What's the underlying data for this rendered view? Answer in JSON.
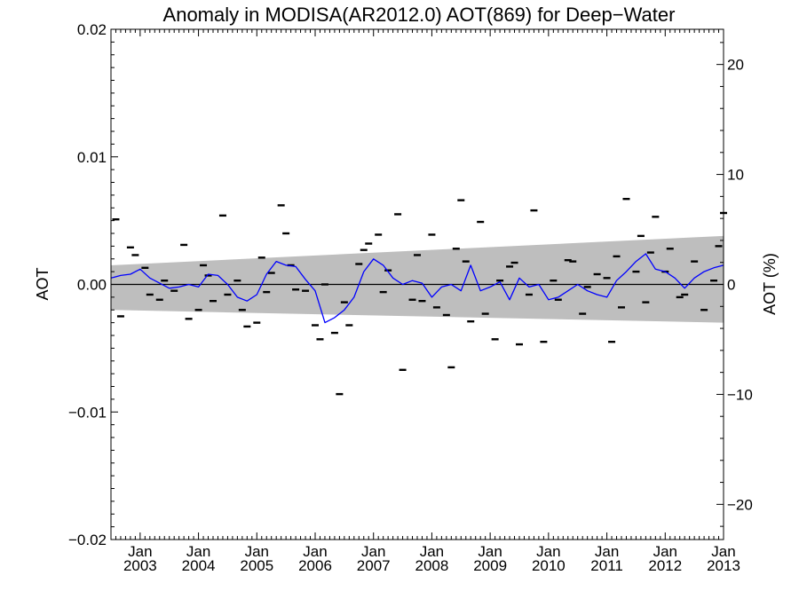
{
  "chart_data": {
    "type": "line",
    "title": "Anomaly in MODISA(AR2012.0) AOT(869) for Deep−Water",
    "ylabel": "AOT",
    "y2label": "AOT (%)",
    "ylim": [
      -0.02,
      0.02
    ],
    "y2lim": [
      -23.2,
      23.2
    ],
    "xlim": [
      "2002-07",
      "2013-01"
    ],
    "yticks": [
      {
        "value": 0.02,
        "label": "0.02"
      },
      {
        "value": 0.01,
        "label": "0.01"
      },
      {
        "value": 0.0,
        "label": "0.00"
      },
      {
        "value": -0.01,
        "label": "−0.01"
      },
      {
        "value": -0.02,
        "label": "−0.02"
      }
    ],
    "y2ticks": [
      {
        "value": 20,
        "label": "20"
      },
      {
        "value": 10,
        "label": "10"
      },
      {
        "value": 0,
        "label": "0"
      },
      {
        "value": -10,
        "label": "−10"
      },
      {
        "value": -20,
        "label": "−20"
      }
    ],
    "xticks": [
      {
        "date": "2003-01",
        "month": "Jan",
        "year": "2003"
      },
      {
        "date": "2004-01",
        "month": "Jan",
        "year": "2004"
      },
      {
        "date": "2005-01",
        "month": "Jan",
        "year": "2005"
      },
      {
        "date": "2006-01",
        "month": "Jan",
        "year": "2006"
      },
      {
        "date": "2007-01",
        "month": "Jan",
        "year": "2007"
      },
      {
        "date": "2008-01",
        "month": "Jan",
        "year": "2008"
      },
      {
        "date": "2009-01",
        "month": "Jan",
        "year": "2009"
      },
      {
        "date": "2010-01",
        "month": "Jan",
        "year": "2010"
      },
      {
        "date": "2011-01",
        "month": "Jan",
        "year": "2011"
      },
      {
        "date": "2012-01",
        "month": "Jan",
        "year": "2012"
      },
      {
        "date": "2013-01",
        "month": "Jan",
        "year": "2013"
      }
    ],
    "band": {
      "start": {
        "date": "2002-07",
        "upper": 0.0015,
        "lower": -0.002
      },
      "end": {
        "date": "2013-01",
        "upper": 0.0038,
        "lower": -0.003
      },
      "color": "#bebebe"
    },
    "zero_line": 0.0,
    "series": [
      {
        "style": "line",
        "color": "#0000ff",
        "points": [
          [
            "2002-07",
            0.0005
          ],
          [
            "2002-09",
            0.0007
          ],
          [
            "2002-11",
            0.0008
          ],
          [
            "2003-01",
            0.0012
          ],
          [
            "2003-03",
            0.0005
          ],
          [
            "2003-05",
            0.0001
          ],
          [
            "2003-07",
            -0.0003
          ],
          [
            "2003-09",
            -0.0002
          ],
          [
            "2003-11",
            0.0
          ],
          [
            "2004-01",
            -0.0002
          ],
          [
            "2004-03",
            0.0008
          ],
          [
            "2004-05",
            0.0007
          ],
          [
            "2004-07",
            0.0
          ],
          [
            "2004-09",
            -0.001
          ],
          [
            "2004-11",
            -0.0013
          ],
          [
            "2005-01",
            -0.0008
          ],
          [
            "2005-03",
            0.0008
          ],
          [
            "2005-05",
            0.0018
          ],
          [
            "2005-07",
            0.0015
          ],
          [
            "2005-09",
            0.0014
          ],
          [
            "2005-11",
            0.0004
          ],
          [
            "2006-01",
            -0.0005
          ],
          [
            "2006-03",
            -0.003
          ],
          [
            "2006-05",
            -0.0026
          ],
          [
            "2006-07",
            -0.002
          ],
          [
            "2006-09",
            -0.001
          ],
          [
            "2006-11",
            0.001
          ],
          [
            "2007-01",
            0.002
          ],
          [
            "2007-03",
            0.0015
          ],
          [
            "2007-05",
            0.0005
          ],
          [
            "2007-07",
            0.0
          ],
          [
            "2007-09",
            0.0003
          ],
          [
            "2007-11",
            0.0001
          ],
          [
            "2008-01",
            -0.001
          ],
          [
            "2008-03",
            -0.0002
          ],
          [
            "2008-05",
            0.0
          ],
          [
            "2008-07",
            -0.0005
          ],
          [
            "2008-09",
            0.0015
          ],
          [
            "2008-11",
            -0.0005
          ],
          [
            "2009-01",
            -0.0002
          ],
          [
            "2009-03",
            0.0002
          ],
          [
            "2009-05",
            -0.0012
          ],
          [
            "2009-07",
            0.0005
          ],
          [
            "2009-09",
            -0.0002
          ],
          [
            "2009-11",
            0.0
          ],
          [
            "2010-01",
            -0.0012
          ],
          [
            "2010-03",
            -0.001
          ],
          [
            "2010-05",
            -0.0005
          ],
          [
            "2010-07",
            0.0
          ],
          [
            "2010-09",
            -0.0005
          ],
          [
            "2010-11",
            -0.0008
          ],
          [
            "2011-01",
            -0.001
          ],
          [
            "2011-03",
            0.0003
          ],
          [
            "2011-05",
            0.001
          ],
          [
            "2011-07",
            0.0018
          ],
          [
            "2011-09",
            0.0024
          ],
          [
            "2011-11",
            0.0012
          ],
          [
            "2012-01",
            0.001
          ],
          [
            "2012-03",
            0.0005
          ],
          [
            "2012-05",
            -0.0003
          ],
          [
            "2012-07",
            0.0005
          ],
          [
            "2012-09",
            0.001
          ],
          [
            "2012-11",
            0.0013
          ],
          [
            "2013-01",
            0.0015
          ]
        ]
      },
      {
        "style": "dash-marker",
        "color": "#000000",
        "points": [
          [
            "2002-08",
            0.0051
          ],
          [
            "2002-09",
            -0.0025
          ],
          [
            "2002-11",
            0.0029
          ],
          [
            "2002-12",
            0.0023
          ],
          [
            "2003-02",
            0.0013
          ],
          [
            "2003-03",
            -0.0008
          ],
          [
            "2003-05",
            -0.0012
          ],
          [
            "2003-06",
            0.0003
          ],
          [
            "2003-08",
            -0.0005
          ],
          [
            "2003-10",
            0.0031
          ],
          [
            "2003-11",
            -0.0027
          ],
          [
            "2004-01",
            -0.002
          ],
          [
            "2004-02",
            0.0015
          ],
          [
            "2004-03",
            0.0007
          ],
          [
            "2004-04",
            -0.0013
          ],
          [
            "2004-06",
            0.0054
          ],
          [
            "2004-07",
            -0.0008
          ],
          [
            "2004-09",
            0.0003
          ],
          [
            "2004-10",
            -0.002
          ],
          [
            "2004-11",
            -0.0033
          ],
          [
            "2005-01",
            -0.003
          ],
          [
            "2005-02",
            0.0021
          ],
          [
            "2005-03",
            -0.0006
          ],
          [
            "2005-04",
            0.0009
          ],
          [
            "2005-06",
            0.0062
          ],
          [
            "2005-07",
            0.004
          ],
          [
            "2005-08",
            0.0015
          ],
          [
            "2005-09",
            -0.0004
          ],
          [
            "2005-11",
            -0.0005
          ],
          [
            "2006-01",
            -0.0032
          ],
          [
            "2006-02",
            -0.0043
          ],
          [
            "2006-03",
            0.0
          ],
          [
            "2006-05",
            -0.0038
          ],
          [
            "2006-06",
            -0.0086
          ],
          [
            "2006-07",
            -0.0014
          ],
          [
            "2006-08",
            -0.0032
          ],
          [
            "2006-10",
            0.0016
          ],
          [
            "2006-11",
            0.0027
          ],
          [
            "2006-12",
            0.0032
          ],
          [
            "2007-02",
            0.0039
          ],
          [
            "2007-03",
            -0.0006
          ],
          [
            "2007-04",
            0.0011
          ],
          [
            "2007-06",
            0.0055
          ],
          [
            "2007-07",
            -0.0067
          ],
          [
            "2007-09",
            -0.0012
          ],
          [
            "2007-10",
            0.0023
          ],
          [
            "2007-11",
            -0.0013
          ],
          [
            "2008-01",
            0.0039
          ],
          [
            "2008-02",
            -0.0018
          ],
          [
            "2008-04",
            -0.0024
          ],
          [
            "2008-05",
            -0.0065
          ],
          [
            "2008-06",
            0.0028
          ],
          [
            "2008-07",
            0.0066
          ],
          [
            "2008-08",
            0.0018
          ],
          [
            "2008-09",
            -0.0029
          ],
          [
            "2008-11",
            0.0049
          ],
          [
            "2008-12",
            -0.0023
          ],
          [
            "2009-02",
            -0.0043
          ],
          [
            "2009-03",
            0.0003
          ],
          [
            "2009-05",
            0.0014
          ],
          [
            "2009-06",
            0.0017
          ],
          [
            "2009-07",
            -0.0047
          ],
          [
            "2009-09",
            -0.0008
          ],
          [
            "2009-10",
            0.0058
          ],
          [
            "2009-12",
            -0.0045
          ],
          [
            "2010-02",
            0.0003
          ],
          [
            "2010-03",
            -0.0012
          ],
          [
            "2010-05",
            0.0019
          ],
          [
            "2010-06",
            0.0018
          ],
          [
            "2010-08",
            -0.0023
          ],
          [
            "2010-09",
            -0.0002
          ],
          [
            "2010-11",
            0.0008
          ],
          [
            "2011-01",
            0.0005
          ],
          [
            "2011-02",
            -0.0045
          ],
          [
            "2011-03",
            0.0022
          ],
          [
            "2011-04",
            -0.0018
          ],
          [
            "2011-05",
            0.0067
          ],
          [
            "2011-07",
            0.001
          ],
          [
            "2011-08",
            0.0038
          ],
          [
            "2011-09",
            -0.0014
          ],
          [
            "2011-10",
            0.0025
          ],
          [
            "2011-11",
            0.0053
          ],
          [
            "2012-01",
            0.001
          ],
          [
            "2012-02",
            0.0028
          ],
          [
            "2012-04",
            -0.001
          ],
          [
            "2012-05",
            -0.0008
          ],
          [
            "2012-07",
            0.0018
          ],
          [
            "2012-09",
            -0.002
          ],
          [
            "2012-11",
            0.0003
          ],
          [
            "2012-12",
            0.003
          ],
          [
            "2013-01",
            0.0056
          ]
        ]
      }
    ],
    "grid": false,
    "legend": "none"
  }
}
